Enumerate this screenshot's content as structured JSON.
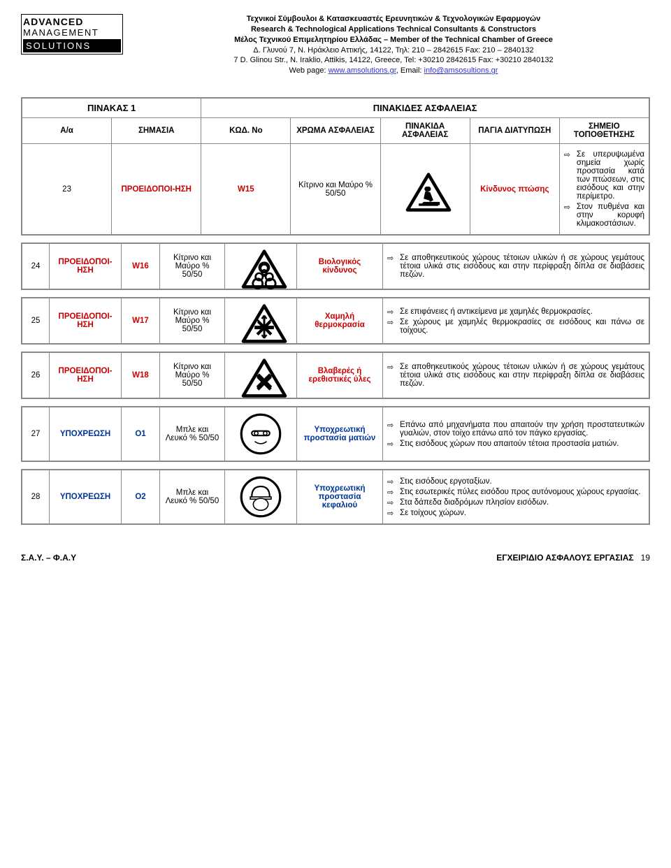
{
  "logo": {
    "l1": "ADVANCED",
    "l2": "MANAGEMENT",
    "l3": "SOLUTIONS"
  },
  "header": {
    "line1": "Τεχνικοί Σύμβουλοι & Κατασκευαστές Ερευνητικών & Τεχνολογικών Εφαρμογών",
    "line2": "Research & Technological Applications Technical Consultants & Constructors",
    "line3": "Μέλος Τεχνικού Επιμελητηρίου Ελλάδας – Member of the Technical Chamber of Greece",
    "line4": "Δ. Γλυνού 7, Ν. Ηράκλειο Αττικής, 14122, Τηλ: 210 – 2842615 Fax: 210 – 2840132",
    "line5": "7 D. Glinou Str., N. Iraklio, Attikis, 14122, Greece, Tel: +30210 2842615 Fax: +30210 2840132",
    "line6a": "Web page: ",
    "line6b": "www.amsolutions.gr",
    "line6c": ", Email: ",
    "line6d": "info@amsosultions.gr"
  },
  "table": {
    "title_left": "ΠΙΝΑΚΑΣ 1",
    "title_right": "ΠΙΝΑΚΙΔΕΣ ΑΣΦΑΛΕΙΑΣ",
    "headers": {
      "idx": "Α/α",
      "sim": "ΣΗΜΑΣΙΑ",
      "kod": "ΚΩΔ. No",
      "xroma": "ΧΡΩΜΑ ΑΣΦΑΛΕΙΑΣ",
      "pin": "ΠΙΝΑΚΙΔΑ ΑΣΦΑΛΕΙΑΣ",
      "pagia": "ΠΑΓΙΑ ΔΙΑΤΥΠΩΣΗ",
      "loc": "ΣΗΜΕΙΟ ΤΟΠΟΘΕΤΗΣΗΣ"
    }
  },
  "rows": [
    {
      "idx": "23",
      "sim": "ΠΡΟΕΙΔΟΠΟΙ-ΗΣΗ",
      "kod": "W15",
      "xroma": "Κίτρινο και Μαύρο % 50/50",
      "icon": "fall",
      "pagia": "Κίνδυνος πτώσης",
      "pagia_color": "red",
      "loc": [
        "Σε υπερυψωμένα σημεία χωρίς προστασία κατά των πτώσεων, στις εισόδους και στην περίμετρο.",
        "Στον πυθμένα και στην κορυφή κλιμακοστάσιων."
      ]
    },
    {
      "idx": "24",
      "sim": "ΠΡΟΕΙΔΟΠΟΙ-ΗΣΗ",
      "kod": "W16",
      "xroma": "Κίτρινο και Μαύρο % 50/50",
      "icon": "bio",
      "pagia": "Βιολογικός κίνδυνος",
      "pagia_color": "red",
      "loc": [
        "Σε αποθηκευτικούς χώρους τέτοιων υλικών ή σε χώρους γεμάτους τέτοια υλικά στις εισόδους και στην περίφραξη δίπλα σε διαβάσεις πεζών."
      ]
    },
    {
      "idx": "25",
      "sim": "ΠΡΟΕΙΔΟΠΟΙ-ΗΣΗ",
      "kod": "W17",
      "xroma": "Κίτρινο και Μαύρο % 50/50",
      "icon": "cold",
      "pagia": "Χαμηλή θερμοκρασία",
      "pagia_color": "red",
      "loc": [
        "Σε επιφάνειες ή αντικείμενα με χαμηλές θερμοκρασίες.",
        "Σε χώρους με χαμηλές θερμοκρασίες σε εισόδους και πάνω σε τοίχους."
      ]
    },
    {
      "idx": "26",
      "sim": "ΠΡΟΕΙΔΟΠΟΙ-ΗΣΗ",
      "kod": "W18",
      "xroma": "Κίτρινο και Μαύρο % 50/50",
      "icon": "harmful",
      "pagia": "Βλαβερές ή ερεθιστικές ύλες",
      "pagia_color": "red",
      "loc": [
        "Σε αποθηκευτικούς χώρους τέτοιων υλικών ή σε χώρους γεμάτους τέτοια υλικά στις εισόδους και στην περίφραξη δίπλα σε διαβάσεις πεζών."
      ]
    },
    {
      "idx": "27",
      "sim": "ΥΠΟΧΡΕΩΣΗ",
      "kod": "O1",
      "xroma": "Μπλε και Λευκό % 50/50",
      "icon": "goggles",
      "pagia": "Υποχρεωτική προστασία ματιών",
      "pagia_color": "blue",
      "loc": [
        "Επάνω από μηχανήματα που απαιτούν την χρήση προστατευτικών γυαλιών, στον τοίχο επάνω από τον πάγκο εργασίας.",
        "Στις εισόδους χώρων που απαιτούν τέτοια προστασία ματιών."
      ]
    },
    {
      "idx": "28",
      "sim": "ΥΠΟΧΡΕΩΣΗ",
      "kod": "O2",
      "xroma": "Μπλε και Λευκό % 50/50",
      "icon": "helmet",
      "pagia": "Υποχρεωτική προστασία κεφαλιού",
      "pagia_color": "blue",
      "loc": [
        "Στις εισόδους εργοταξίων.",
        "Στις εσωτερικές πύλες εισόδου προς αυτόνομους χώρους εργασίας.",
        "Στα δάπεδα διαδρόμων πλησίον εισόδων.",
        "Σε τοίχους χώρων."
      ]
    }
  ],
  "footer": {
    "left": "Σ.Α.Υ. – Φ.Α.Υ",
    "center": "ΕΓΧΕΙΡΙΔΙΟ ΑΣΦΑΛΟΥΣ ΕΡΓΑΣΙΑΣ",
    "page": "19"
  },
  "icons": {
    "triangle_bg": "#ffffff",
    "triangle_stroke": "#000000",
    "circle_bg": "#ffffff",
    "circle_stroke": "#000000"
  }
}
